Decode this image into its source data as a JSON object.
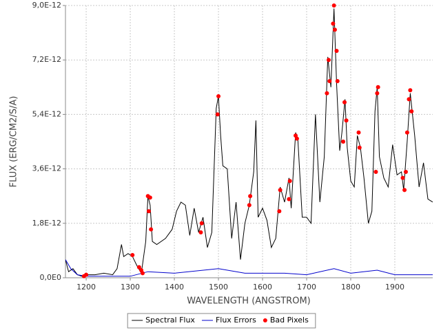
{
  "chart_data": {
    "type": "line",
    "x_label": "WAVELENGTH (ANGSTROM)",
    "y_label": "FLUX (ERG/CM2/S/A)",
    "xlim": [
      1153,
      1986
    ],
    "ylim": [
      0,
      9e-12
    ],
    "xticks": [
      1200,
      1300,
      1400,
      1500,
      1600,
      1700,
      1800,
      1900
    ],
    "yticks": [
      {
        "value": 0,
        "label": "0,0E0"
      },
      {
        "value": 1.8e-12,
        "label": "1,8E-12"
      },
      {
        "value": 3.6e-12,
        "label": "3,6E-12"
      },
      {
        "value": 5.4e-12,
        "label": "5,4E-12"
      },
      {
        "value": 7.2e-12,
        "label": "7,2E-12"
      },
      {
        "value": 9e-12,
        "label": "9,0E-12"
      }
    ],
    "grid": true,
    "legend": "bottom",
    "series": [
      {
        "name": "Spectral Flux",
        "type": "line",
        "color": "#000000",
        "x": [
          1153,
          1160,
          1170,
          1180,
          1190,
          1200,
          1220,
          1240,
          1260,
          1270,
          1280,
          1285,
          1295,
          1305,
          1315,
          1325,
          1335,
          1340,
          1345,
          1350,
          1360,
          1380,
          1395,
          1405,
          1415,
          1425,
          1435,
          1445,
          1455,
          1465,
          1475,
          1485,
          1495,
          1500,
          1505,
          1510,
          1520,
          1530,
          1540,
          1550,
          1560,
          1570,
          1580,
          1585,
          1590,
          1600,
          1610,
          1620,
          1630,
          1640,
          1650,
          1660,
          1665,
          1675,
          1680,
          1690,
          1700,
          1710,
          1720,
          1730,
          1740,
          1748,
          1755,
          1762,
          1768,
          1775,
          1780,
          1787,
          1792,
          1800,
          1808,
          1815,
          1822,
          1830,
          1840,
          1848,
          1855,
          1860,
          1865,
          1875,
          1885,
          1895,
          1905,
          1915,
          1920,
          1928,
          1935,
          1945,
          1955,
          1965,
          1975,
          1986
        ],
        "values": [
          6e-13,
          2e-13,
          3e-13,
          1e-13,
          5e-14,
          1e-13,
          1e-13,
          1.5e-13,
          1e-13,
          3e-13,
          1.1e-12,
          7e-13,
          8e-13,
          7e-13,
          4e-13,
          1.5e-13,
          1.2e-12,
          2.7e-12,
          2.4e-12,
          1.2e-12,
          1.1e-12,
          1.3e-12,
          1.6e-12,
          2.2e-12,
          2.5e-12,
          2.4e-12,
          1.4e-12,
          2.3e-12,
          1.5e-12,
          2e-12,
          1e-12,
          1.5e-12,
          5.6e-12,
          6e-12,
          4.7e-12,
          3.7e-12,
          3.6e-12,
          1.3e-12,
          2.5e-12,
          6e-13,
          1.8e-12,
          2.4e-12,
          3.5e-12,
          5.2e-12,
          2e-12,
          2.3e-12,
          1.9e-12,
          1e-12,
          1.3e-12,
          3e-12,
          2.5e-12,
          3.3e-12,
          2.3e-12,
          4.8e-12,
          4.6e-12,
          2e-12,
          2e-12,
          1.8e-12,
          5.4e-12,
          2.5e-12,
          4e-12,
          7.3e-12,
          6.3e-12,
          8.9e-12,
          6.4e-12,
          4.2e-12,
          4.8e-12,
          5.9e-12,
          4.3e-12,
          3.2e-12,
          3e-12,
          4.7e-12,
          4.3e-12,
          3.3e-12,
          1.8e-12,
          2.2e-12,
          5.5e-12,
          6.3e-12,
          4e-12,
          3.3e-12,
          3e-12,
          4.4e-12,
          3.4e-12,
          3.5e-12,
          2.9e-12,
          4.5e-12,
          6.1e-12,
          4.7e-12,
          3e-12,
          3.8e-12,
          2.6e-12,
          2.5e-12
        ]
      },
      {
        "name": "Flux Errors",
        "type": "line",
        "color": "#0000cc",
        "x": [
          1153,
          1165,
          1180,
          1200,
          1300,
          1340,
          1400,
          1500,
          1560,
          1650,
          1700,
          1762,
          1800,
          1860,
          1900,
          1986
        ],
        "values": [
          6e-13,
          3e-13,
          1e-13,
          5e-14,
          5e-14,
          2e-13,
          1.5e-13,
          3e-13,
          1.5e-13,
          1.5e-13,
          1e-13,
          3e-13,
          1.5e-13,
          2.5e-13,
          1e-13,
          1e-13
        ]
      },
      {
        "name": "Bad Pixels",
        "type": "scatter",
        "color": "#ff0000",
        "x": [
          1195,
          1200,
          1305,
          1320,
          1325,
          1328,
          1340,
          1342,
          1345,
          1347,
          1460,
          1462,
          1498,
          1500,
          1570,
          1572,
          1638,
          1640,
          1660,
          1662,
          1675,
          1678,
          1746,
          1750,
          1752,
          1760,
          1762,
          1764,
          1768,
          1770,
          1783,
          1786,
          1790,
          1818,
          1820,
          1857,
          1860,
          1862,
          1918,
          1922,
          1925,
          1928,
          1932,
          1935,
          1938
        ],
        "values": [
          5e-14,
          1e-13,
          7.5e-13,
          3.5e-13,
          2.5e-13,
          1.5e-13,
          2.7e-12,
          2.2e-12,
          2.65e-12,
          1.6e-12,
          1.5e-12,
          1.8e-12,
          5.4e-12,
          6e-12,
          2.4e-12,
          2.7e-12,
          2.2e-12,
          2.9e-12,
          2.6e-12,
          3.2e-12,
          4.7e-12,
          4.6e-12,
          6.1e-12,
          7.2e-12,
          6.5e-12,
          8.4e-12,
          9e-12,
          8.2e-12,
          7.5e-12,
          6.5e-12,
          4.5e-12,
          5.8e-12,
          5.2e-12,
          4.8e-12,
          4.3e-12,
          3.5e-12,
          6.1e-12,
          6.3e-12,
          3.3e-12,
          2.9e-12,
          3.5e-12,
          4.8e-12,
          5.9e-12,
          6.2e-12,
          5.5e-12
        ]
      }
    ]
  }
}
